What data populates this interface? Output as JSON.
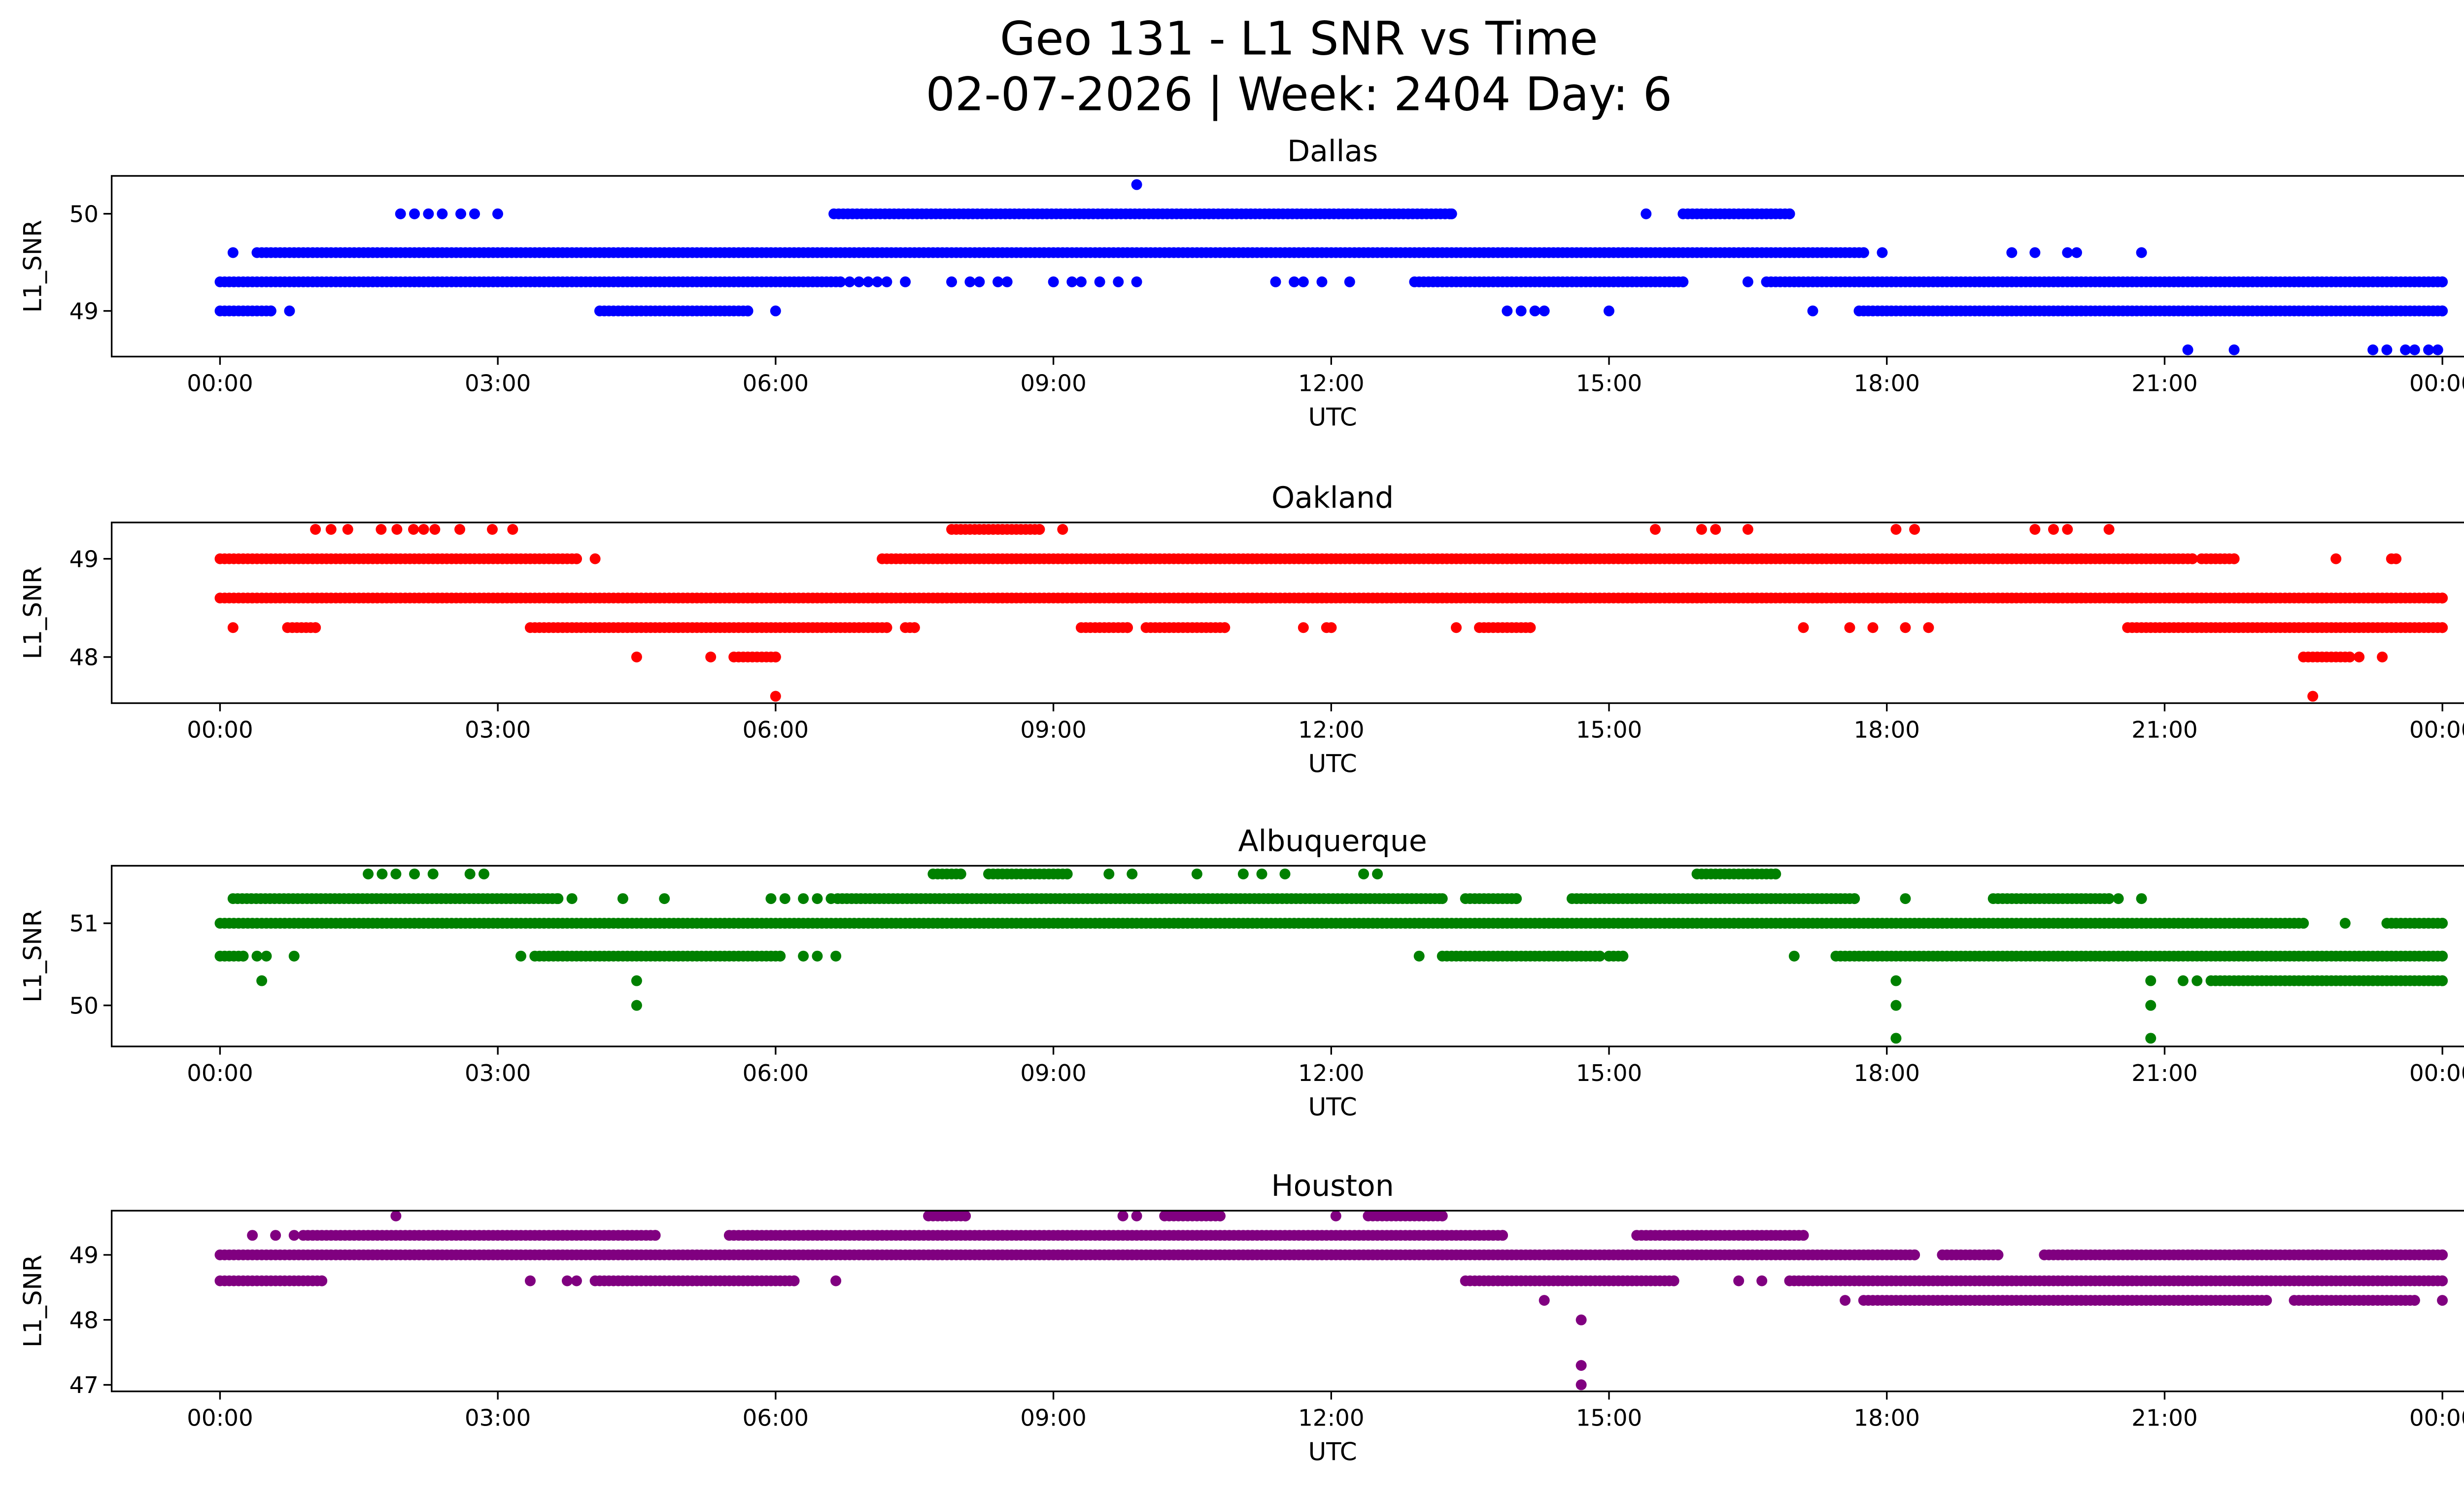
{
  "title": "Geo 131 - L1 SNR vs Time",
  "subtitle": "02-07-2026 | Week: 2404 Day: 6",
  "chart_data": [
    {
      "type": "scatter",
      "title": "Dallas",
      "xlabel": "UTC",
      "ylabel": "L1_SNR",
      "color": "#0000ff",
      "xlim": [
        -1.17,
        25.2
      ],
      "ylim": [
        48.53,
        50.39
      ],
      "xticks": [
        0,
        3,
        6,
        9,
        12,
        15,
        18,
        21,
        24
      ],
      "xtick_labels": [
        "00:00",
        "03:00",
        "06:00",
        "09:00",
        "12:00",
        "15:00",
        "18:00",
        "21:00",
        "00:00"
      ],
      "yticks": [
        49,
        50
      ],
      "ytick_labels": [
        "49",
        "50"
      ],
      "bands": [
        {
          "y": 49.3,
          "ranges": [
            [
              0,
              6.7
            ],
            [
              12.9,
              15.8
            ],
            [
              16.7,
              24
            ]
          ]
        },
        {
          "y": 49.6,
          "ranges": [
            [
              0.4,
              17.75
            ]
          ]
        },
        {
          "y": 50.0,
          "ranges": [
            [
              6.63,
              13.3
            ],
            [
              15.8,
              16.95
            ]
          ]
        },
        {
          "y": 49.0,
          "ranges": [
            [
              0,
              0.55
            ],
            [
              4.1,
              5.7
            ],
            [
              17.7,
              24
            ]
          ]
        }
      ],
      "points": [
        [
          6.8,
          49.3
        ],
        [
          6.9,
          49.3
        ],
        [
          7.0,
          49.3
        ],
        [
          7.1,
          49.3
        ],
        [
          7.2,
          49.3
        ],
        [
          7.4,
          49.3
        ],
        [
          7.9,
          49.3
        ],
        [
          8.1,
          49.3
        ],
        [
          8.2,
          49.3
        ],
        [
          8.4,
          49.3
        ],
        [
          8.5,
          49.3
        ],
        [
          9.0,
          49.3
        ],
        [
          9.2,
          49.3
        ],
        [
          9.3,
          49.3
        ],
        [
          9.5,
          49.3
        ],
        [
          9.7,
          49.3
        ],
        [
          9.9,
          49.3
        ],
        [
          11.4,
          49.3
        ],
        [
          11.6,
          49.3
        ],
        [
          11.7,
          49.3
        ],
        [
          11.9,
          49.3
        ],
        [
          12.2,
          49.3
        ],
        [
          16.5,
          49.3
        ],
        [
          0.14,
          49.6
        ],
        [
          17.95,
          49.6
        ],
        [
          19.35,
          49.6
        ],
        [
          19.6,
          49.6
        ],
        [
          19.95,
          49.6
        ],
        [
          20.05,
          49.6
        ],
        [
          20.75,
          49.6
        ],
        [
          1.95,
          50.0
        ],
        [
          2.1,
          50.0
        ],
        [
          2.25,
          50.0
        ],
        [
          2.4,
          50.0
        ],
        [
          2.6,
          50.0
        ],
        [
          2.75,
          50.0
        ],
        [
          3.0,
          50.0
        ],
        [
          15.4,
          50.0
        ],
        [
          9.9,
          50.3
        ],
        [
          0.75,
          49.0
        ],
        [
          6.0,
          49.0
        ],
        [
          13.9,
          49.0
        ],
        [
          14.05,
          49.0
        ],
        [
          14.2,
          49.0
        ],
        [
          14.3,
          49.0
        ],
        [
          15.0,
          49.0
        ],
        [
          17.2,
          49.0
        ],
        [
          21.25,
          48.6
        ],
        [
          21.75,
          48.6
        ],
        [
          23.25,
          48.6
        ],
        [
          23.4,
          48.6
        ],
        [
          23.6,
          48.6
        ],
        [
          23.7,
          48.6
        ],
        [
          23.85,
          48.6
        ],
        [
          23.95,
          48.6
        ]
      ]
    },
    {
      "type": "scatter",
      "title": "Oakland",
      "xlabel": "UTC",
      "ylabel": "L1_SNR",
      "color": "#ff0000",
      "xlim": [
        -1.17,
        25.2
      ],
      "ylim": [
        47.53,
        49.37
      ],
      "xticks": [
        0,
        3,
        6,
        9,
        12,
        15,
        18,
        21,
        24
      ],
      "xtick_labels": [
        "00:00",
        "03:00",
        "06:00",
        "09:00",
        "12:00",
        "15:00",
        "18:00",
        "21:00",
        "00:00"
      ],
      "yticks": [
        48,
        49
      ],
      "ytick_labels": [
        "48",
        "49"
      ],
      "bands": [
        {
          "y": 48.6,
          "ranges": [
            [
              0,
              24
            ]
          ]
        },
        {
          "y": 49.0,
          "ranges": [
            [
              0,
              3.85
            ],
            [
              7.15,
              21.3
            ],
            [
              21.4,
              21.75
            ]
          ]
        },
        {
          "y": 49.3,
          "ranges": [
            [
              7.9,
              8.85
            ]
          ]
        },
        {
          "y": 48.3,
          "ranges": [
            [
              0.73,
              1.03
            ],
            [
              3.35,
              7.2
            ],
            [
              7.4,
              7.5
            ],
            [
              9.3,
              9.8
            ],
            [
              10.0,
              10.85
            ],
            [
              13.6,
              14.15
            ],
            [
              20.6,
              24
            ]
          ]
        },
        {
          "y": 48.0,
          "ranges": [
            [
              5.55,
              6.0
            ],
            [
              22.5,
              23.0
            ]
          ]
        }
      ],
      "points": [
        [
          4.05,
          49.0
        ],
        [
          22.85,
          49.0
        ],
        [
          23.45,
          49.0
        ],
        [
          23.5,
          49.0
        ],
        [
          1.03,
          49.3
        ],
        [
          1.2,
          49.3
        ],
        [
          1.38,
          49.3
        ],
        [
          1.74,
          49.3
        ],
        [
          1.91,
          49.3
        ],
        [
          2.09,
          49.3
        ],
        [
          2.2,
          49.3
        ],
        [
          2.32,
          49.3
        ],
        [
          2.59,
          49.3
        ],
        [
          2.94,
          49.3
        ],
        [
          3.16,
          49.3
        ],
        [
          9.1,
          49.3
        ],
        [
          15.5,
          49.3
        ],
        [
          16.0,
          49.3
        ],
        [
          16.15,
          49.3
        ],
        [
          16.5,
          49.3
        ],
        [
          18.1,
          49.3
        ],
        [
          18.3,
          49.3
        ],
        [
          19.6,
          49.3
        ],
        [
          19.8,
          49.3
        ],
        [
          19.95,
          49.3
        ],
        [
          20.4,
          49.3
        ],
        [
          0.14,
          48.3
        ],
        [
          11.7,
          48.3
        ],
        [
          11.95,
          48.3
        ],
        [
          12.0,
          48.3
        ],
        [
          13.35,
          48.3
        ],
        [
          17.1,
          48.3
        ],
        [
          17.6,
          48.3
        ],
        [
          17.85,
          48.3
        ],
        [
          18.2,
          48.3
        ],
        [
          18.45,
          48.3
        ],
        [
          4.5,
          48.0
        ],
        [
          5.3,
          48.0
        ],
        [
          23.1,
          48.0
        ],
        [
          23.35,
          48.0
        ],
        [
          6.0,
          47.6
        ],
        [
          22.6,
          47.6
        ]
      ]
    },
    {
      "type": "scatter",
      "title": "Albuquerque",
      "xlabel": "UTC",
      "ylabel": "L1_SNR",
      "color": "#008000",
      "xlim": [
        -1.17,
        25.2
      ],
      "ylim": [
        49.5,
        51.7
      ],
      "xticks": [
        0,
        3,
        6,
        9,
        12,
        15,
        18,
        21,
        24
      ],
      "xtick_labels": [
        "00:00",
        "03:00",
        "06:00",
        "09:00",
        "12:00",
        "15:00",
        "18:00",
        "21:00",
        "00:00"
      ],
      "yticks": [
        50,
        51
      ],
      "ytick_labels": [
        "50",
        "51"
      ],
      "bands": [
        {
          "y": 51.0,
          "ranges": [
            [
              0,
              22.5
            ],
            [
              23.4,
              24
            ]
          ]
        },
        {
          "y": 51.3,
          "ranges": [
            [
              0.14,
              3.65
            ],
            [
              6.67,
              13.2
            ],
            [
              13.45,
              14.0
            ],
            [
              14.6,
              17.65
            ],
            [
              19.15,
              20.4
            ]
          ]
        },
        {
          "y": 51.6,
          "ranges": [
            [
              7.7,
              8.0
            ],
            [
              8.3,
              9.15
            ],
            [
              15.95,
              16.8
            ]
          ]
        },
        {
          "y": 50.6,
          "ranges": [
            [
              0,
              0.25
            ],
            [
              3.4,
              6.05
            ],
            [
              13.2,
              14.9
            ],
            [
              15.0,
              15.15
            ],
            [
              17.45,
              24
            ]
          ]
        },
        {
          "y": 50.3,
          "ranges": [
            [
              21.5,
              24
            ]
          ]
        }
      ],
      "points": [
        [
          22.95,
          51.0
        ],
        [
          3.8,
          51.3
        ],
        [
          4.35,
          51.3
        ],
        [
          4.8,
          51.3
        ],
        [
          5.95,
          51.3
        ],
        [
          6.1,
          51.3
        ],
        [
          6.3,
          51.3
        ],
        [
          6.45,
          51.3
        ],
        [
          6.6,
          51.3
        ],
        [
          18.2,
          51.3
        ],
        [
          20.5,
          51.3
        ],
        [
          20.75,
          51.3
        ],
        [
          1.6,
          51.6
        ],
        [
          1.75,
          51.6
        ],
        [
          1.9,
          51.6
        ],
        [
          2.1,
          51.6
        ],
        [
          2.3,
          51.6
        ],
        [
          2.7,
          51.6
        ],
        [
          2.85,
          51.6
        ],
        [
          9.6,
          51.6
        ],
        [
          9.85,
          51.6
        ],
        [
          10.55,
          51.6
        ],
        [
          11.05,
          51.6
        ],
        [
          11.25,
          51.6
        ],
        [
          11.5,
          51.6
        ],
        [
          12.35,
          51.6
        ],
        [
          12.5,
          51.6
        ],
        [
          0.4,
          50.6
        ],
        [
          0.5,
          50.6
        ],
        [
          0.8,
          50.6
        ],
        [
          3.25,
          50.6
        ],
        [
          6.3,
          50.6
        ],
        [
          6.45,
          50.6
        ],
        [
          6.65,
          50.6
        ],
        [
          12.95,
          50.6
        ],
        [
          17.0,
          50.6
        ],
        [
          0.45,
          50.3
        ],
        [
          4.5,
          50.3
        ],
        [
          18.1,
          50.3
        ],
        [
          20.85,
          50.3
        ],
        [
          21.35,
          50.3
        ],
        [
          21.2,
          50.3
        ],
        [
          4.5,
          50.0
        ],
        [
          18.1,
          50.0
        ],
        [
          20.85,
          50.0
        ],
        [
          18.1,
          49.6
        ],
        [
          20.85,
          49.6
        ]
      ]
    },
    {
      "type": "scatter",
      "title": "Houston",
      "xlabel": "UTC",
      "ylabel": "L1_SNR",
      "color": "#800080",
      "xlim": [
        -1.17,
        25.2
      ],
      "ylim": [
        46.9,
        49.68
      ],
      "xticks": [
        0,
        3,
        6,
        9,
        12,
        15,
        18,
        21,
        24
      ],
      "xtick_labels": [
        "00:00",
        "03:00",
        "06:00",
        "09:00",
        "12:00",
        "15:00",
        "18:00",
        "21:00",
        "00:00"
      ],
      "yticks": [
        47,
        48,
        49
      ],
      "ytick_labels": [
        "47",
        "48",
        "49"
      ],
      "bands": [
        {
          "y": 49.0,
          "ranges": [
            [
              0,
              18.3
            ],
            [
              18.6,
              19.2
            ],
            [
              19.7,
              24
            ]
          ]
        },
        {
          "y": 48.6,
          "ranges": [
            [
              0,
              1.1
            ],
            [
              4.05,
              6.2
            ],
            [
              13.45,
              15.7
            ],
            [
              16.95,
              24
            ]
          ]
        },
        {
          "y": 49.3,
          "ranges": [
            [
              0.9,
              4.7
            ],
            [
              5.55,
              13.85
            ],
            [
              15.3,
              17.1
            ]
          ]
        },
        {
          "y": 49.6,
          "ranges": [
            [
              7.65,
              8.05
            ],
            [
              10.2,
              10.8
            ],
            [
              12.4,
              13.2
            ]
          ]
        },
        {
          "y": 48.3,
          "ranges": [
            [
              17.75,
              22.1
            ],
            [
              22.4,
              23.7
            ]
          ]
        }
      ],
      "points": [
        [
          3.35,
          48.6
        ],
        [
          3.75,
          48.6
        ],
        [
          3.85,
          48.6
        ],
        [
          6.65,
          48.6
        ],
        [
          16.4,
          48.6
        ],
        [
          16.65,
          48.6
        ],
        [
          0.35,
          49.3
        ],
        [
          0.6,
          49.3
        ],
        [
          0.8,
          49.3
        ],
        [
          5.5,
          49.3
        ],
        [
          1.9,
          49.6
        ],
        [
          9.75,
          49.6
        ],
        [
          9.9,
          49.6
        ],
        [
          12.05,
          49.6
        ],
        [
          14.3,
          48.3
        ],
        [
          17.55,
          48.3
        ],
        [
          24.0,
          48.3
        ],
        [
          14.7,
          48.0
        ],
        [
          14.7,
          47.3
        ],
        [
          14.7,
          47.0
        ]
      ]
    }
  ]
}
